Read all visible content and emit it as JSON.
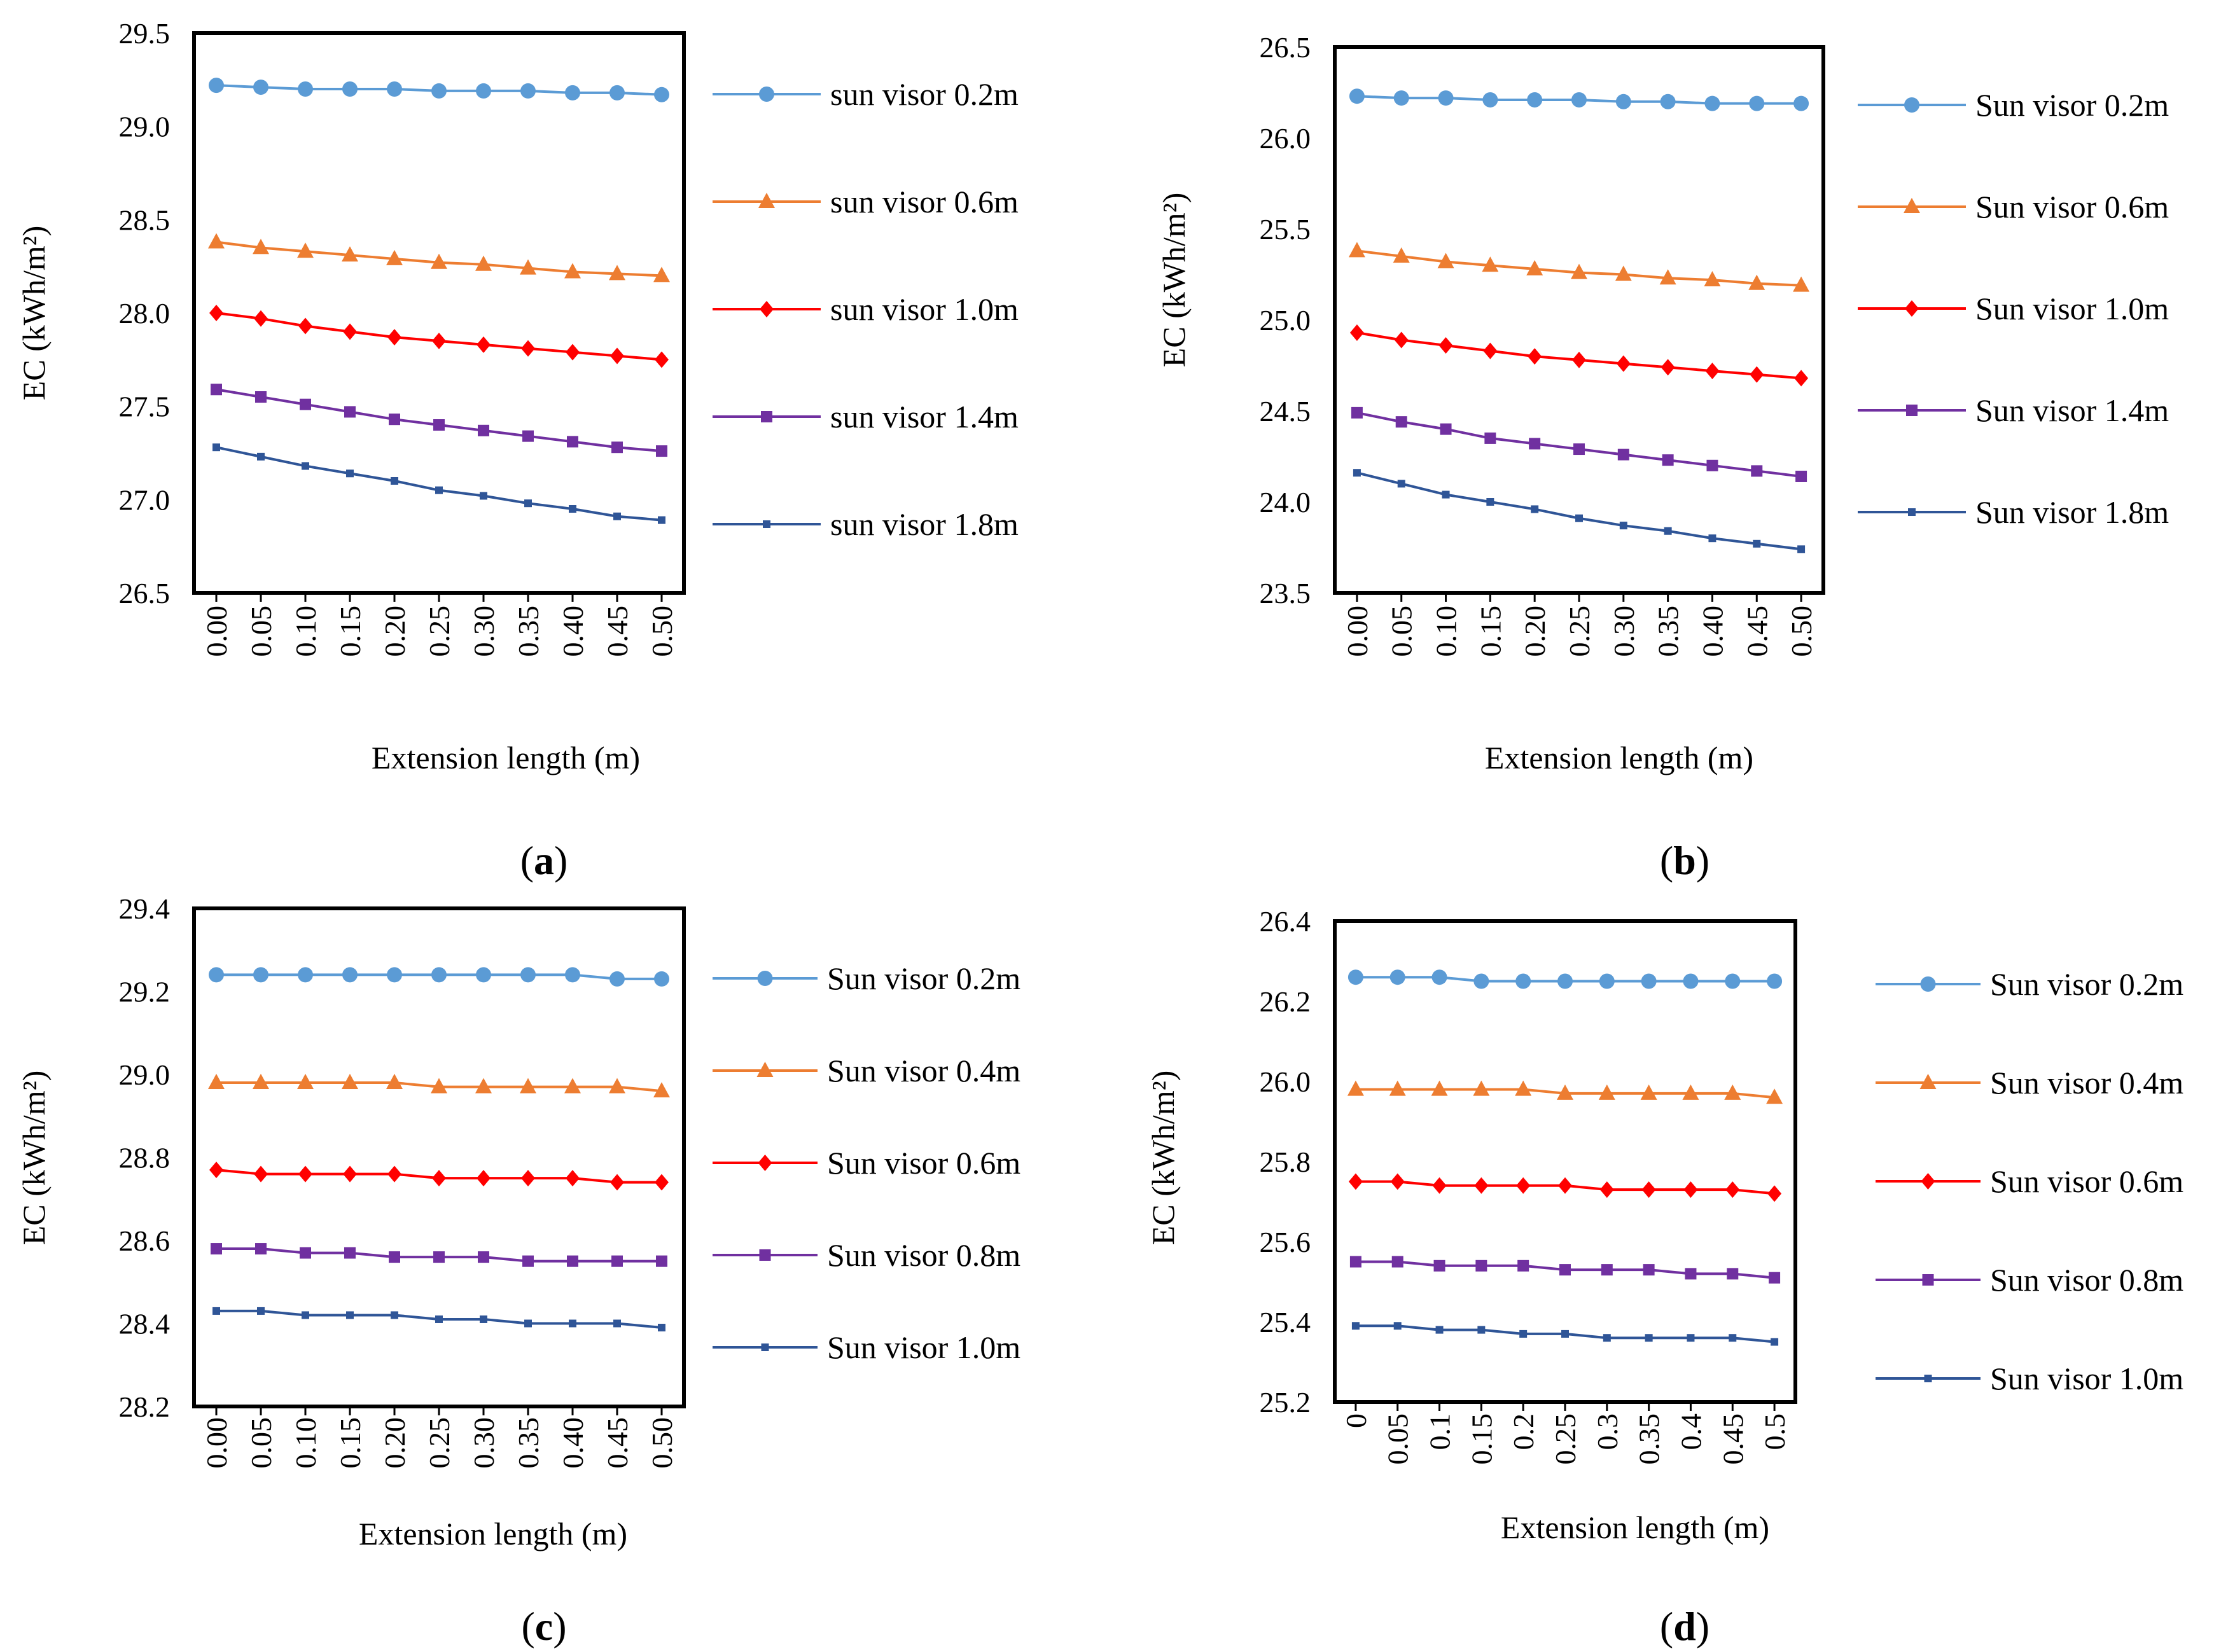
{
  "figure_captions": [
    {
      "open": "(",
      "letter": "a",
      "close": ")"
    },
    {
      "open": "(",
      "letter": "b",
      "close": ")"
    },
    {
      "open": "(",
      "letter": "c",
      "close": ")"
    },
    {
      "open": "(",
      "letter": "d",
      "close": ")"
    }
  ],
  "chart_data": [
    {
      "type": "line",
      "panel": "a",
      "ylabel": "EC  (kWh/m²)",
      "xlabel": "Extension length  (m)",
      "categories": [
        "0.00",
        "0.05",
        "0.10",
        "0.15",
        "0.20",
        "0.25",
        "0.30",
        "0.35",
        "0.40",
        "0.45",
        "0.50"
      ],
      "ylim": [
        26.5,
        29.5
      ],
      "yticks": [
        "26.5",
        "27.0",
        "27.5",
        "28.0",
        "28.5",
        "29.0",
        "29.5"
      ],
      "series": [
        {
          "name": "sun visor 0.2m",
          "color": "#5B9BD5",
          "marker": "circle",
          "values": [
            29.22,
            29.21,
            29.2,
            29.2,
            29.2,
            29.19,
            29.19,
            29.19,
            29.18,
            29.18,
            29.17
          ]
        },
        {
          "name": "sun visor 0.6m",
          "color": "#ED7D31",
          "marker": "triangle",
          "values": [
            28.38,
            28.35,
            28.33,
            28.31,
            28.29,
            28.27,
            28.26,
            28.24,
            28.22,
            28.21,
            28.2
          ]
        },
        {
          "name": "sun visor 1.0m",
          "color": "#FF0000",
          "marker": "diamond",
          "values": [
            28.0,
            27.97,
            27.93,
            27.9,
            27.87,
            27.85,
            27.83,
            27.81,
            27.79,
            27.77,
            27.75
          ]
        },
        {
          "name": "sun visor 1.4m",
          "color": "#7030A0",
          "marker": "square",
          "values": [
            27.59,
            27.55,
            27.51,
            27.47,
            27.43,
            27.4,
            27.37,
            27.34,
            27.31,
            27.28,
            27.26
          ]
        },
        {
          "name": "sun visor 1.8m",
          "color": "#2F5597",
          "marker": "small-square",
          "values": [
            27.28,
            27.23,
            27.18,
            27.14,
            27.1,
            27.05,
            27.02,
            26.98,
            26.95,
            26.91,
            26.89
          ]
        }
      ]
    },
    {
      "type": "line",
      "panel": "b",
      "ylabel": "EC  (kWh/m²)",
      "xlabel": "Extension length  (m)",
      "categories": [
        "0.00",
        "0.05",
        "0.10",
        "0.15",
        "0.20",
        "0.25",
        "0.30",
        "0.35",
        "0.40",
        "0.45",
        "0.50"
      ],
      "ylim": [
        23.5,
        26.5
      ],
      "yticks": [
        "23.5",
        "24.0",
        "24.5",
        "25.0",
        "25.5",
        "26.0",
        "26.5"
      ],
      "series": [
        {
          "name": "Sun visor 0.2m",
          "color": "#5B9BD5",
          "marker": "circle",
          "values": [
            26.23,
            26.22,
            26.22,
            26.21,
            26.21,
            26.21,
            26.2,
            26.2,
            26.19,
            26.19,
            26.19
          ]
        },
        {
          "name": "Sun visor 0.6m",
          "color": "#ED7D31",
          "marker": "triangle",
          "values": [
            25.38,
            25.35,
            25.32,
            25.3,
            25.28,
            25.26,
            25.25,
            25.23,
            25.22,
            25.2,
            25.19
          ]
        },
        {
          "name": "Sun visor 1.0m",
          "color": "#FF0000",
          "marker": "diamond",
          "values": [
            24.93,
            24.89,
            24.86,
            24.83,
            24.8,
            24.78,
            24.76,
            24.74,
            24.72,
            24.7,
            24.68
          ]
        },
        {
          "name": "Sun visor 1.4m",
          "color": "#7030A0",
          "marker": "square",
          "values": [
            24.49,
            24.44,
            24.4,
            24.35,
            24.32,
            24.29,
            24.26,
            24.23,
            24.2,
            24.17,
            24.14
          ]
        },
        {
          "name": "Sun visor 1.8m",
          "color": "#2F5597",
          "marker": "small-square",
          "values": [
            24.16,
            24.1,
            24.04,
            24.0,
            23.96,
            23.91,
            23.87,
            23.84,
            23.8,
            23.77,
            23.74
          ]
        }
      ]
    },
    {
      "type": "line",
      "panel": "c",
      "ylabel": "EC  (kWh/m²)",
      "xlabel": "Extension length  (m)",
      "categories": [
        "0.00",
        "0.05",
        "0.10",
        "0.15",
        "0.20",
        "0.25",
        "0.30",
        "0.35",
        "0.40",
        "0.45",
        "0.50"
      ],
      "ylim": [
        28.2,
        29.4
      ],
      "yticks": [
        "28.2",
        "28.4",
        "28.6",
        "28.8",
        "29.0",
        "29.2",
        "29.4"
      ],
      "series": [
        {
          "name": "Sun visor 0.2m",
          "color": "#5B9BD5",
          "marker": "circle",
          "values": [
            29.24,
            29.24,
            29.24,
            29.24,
            29.24,
            29.24,
            29.24,
            29.24,
            29.24,
            29.23,
            29.23
          ]
        },
        {
          "name": "Sun visor 0.4m",
          "color": "#ED7D31",
          "marker": "triangle",
          "values": [
            28.98,
            28.98,
            28.98,
            28.98,
            28.98,
            28.97,
            28.97,
            28.97,
            28.97,
            28.97,
            28.96
          ]
        },
        {
          "name": "Sun visor 0.6m",
          "color": "#FF0000",
          "marker": "diamond",
          "values": [
            28.77,
            28.76,
            28.76,
            28.76,
            28.76,
            28.75,
            28.75,
            28.75,
            28.75,
            28.74,
            28.74
          ]
        },
        {
          "name": "Sun visor 0.8m",
          "color": "#7030A0",
          "marker": "square",
          "values": [
            28.58,
            28.58,
            28.57,
            28.57,
            28.56,
            28.56,
            28.56,
            28.55,
            28.55,
            28.55,
            28.55
          ]
        },
        {
          "name": "Sun visor 1.0m",
          "color": "#2F5597",
          "marker": "small-square",
          "values": [
            28.43,
            28.43,
            28.42,
            28.42,
            28.42,
            28.41,
            28.41,
            28.4,
            28.4,
            28.4,
            28.39
          ]
        }
      ]
    },
    {
      "type": "line",
      "panel": "d",
      "ylabel": "EC (kWh/m²)",
      "xlabel": "Extension length  (m)",
      "categories": [
        "0",
        "0.05",
        "0.1",
        "0.15",
        "0.2",
        "0.25",
        "0.3",
        "0.35",
        "0.4",
        "0.45",
        "0.5"
      ],
      "ylim": [
        25.2,
        26.4
      ],
      "yticks": [
        "25.2",
        "25.4",
        "25.6",
        "25.8",
        "26.0",
        "26.2",
        "26.4"
      ],
      "series": [
        {
          "name": "Sun visor 0.2m",
          "color": "#5B9BD5",
          "marker": "circle",
          "values": [
            26.26,
            26.26,
            26.26,
            26.25,
            26.25,
            26.25,
            26.25,
            26.25,
            26.25,
            26.25,
            26.25
          ]
        },
        {
          "name": "Sun visor 0.4m",
          "color": "#ED7D31",
          "marker": "triangle",
          "values": [
            25.98,
            25.98,
            25.98,
            25.98,
            25.98,
            25.97,
            25.97,
            25.97,
            25.97,
            25.97,
            25.96
          ]
        },
        {
          "name": "Sun visor 0.6m",
          "color": "#FF0000",
          "marker": "diamond",
          "values": [
            25.75,
            25.75,
            25.74,
            25.74,
            25.74,
            25.74,
            25.73,
            25.73,
            25.73,
            25.73,
            25.72
          ]
        },
        {
          "name": "Sun visor 0.8m",
          "color": "#7030A0",
          "marker": "square",
          "values": [
            25.55,
            25.55,
            25.54,
            25.54,
            25.54,
            25.53,
            25.53,
            25.53,
            25.52,
            25.52,
            25.51
          ]
        },
        {
          "name": "Sun visor 1.0m",
          "color": "#2F5597",
          "marker": "small-square",
          "values": [
            25.39,
            25.39,
            25.38,
            25.38,
            25.37,
            25.37,
            25.36,
            25.36,
            25.36,
            25.36,
            25.35
          ]
        }
      ]
    }
  ]
}
